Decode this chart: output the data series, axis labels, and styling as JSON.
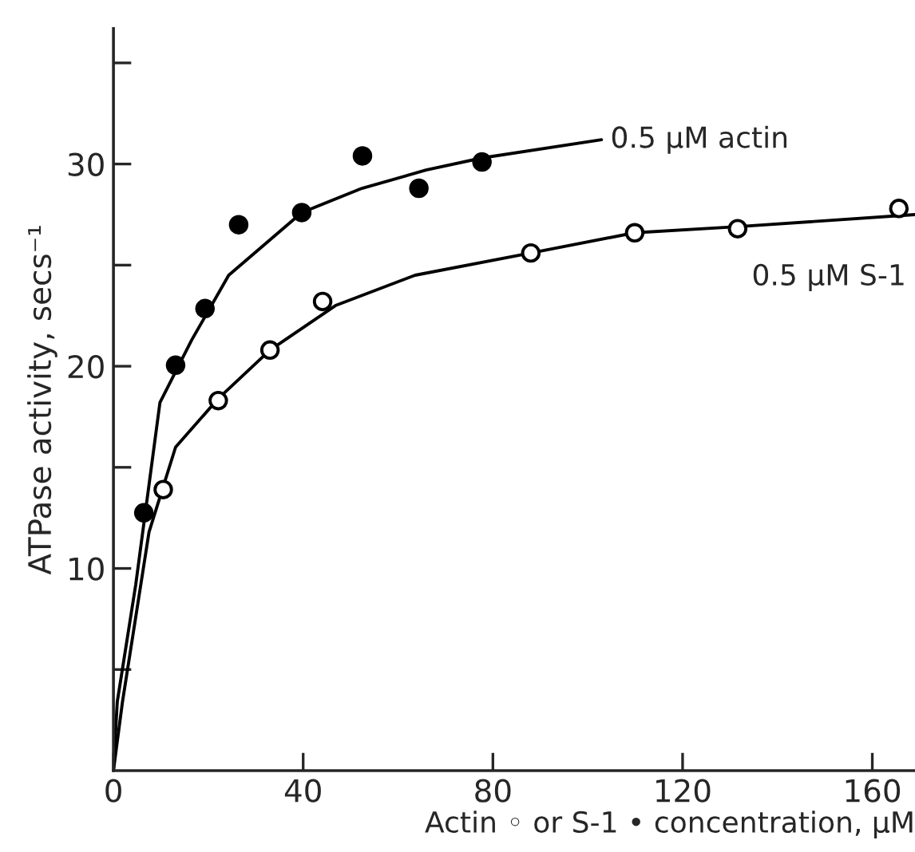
{
  "chart_data": {
    "type": "scatter",
    "xlabel": "Actin ◦ or S-1 • concentration, μM",
    "ylabel": "ATPase activity, secs⁻¹",
    "xlim": [
      0,
      169
    ],
    "ylim": [
      0,
      36.7
    ],
    "xticks": [
      0,
      40,
      80,
      120,
      160
    ],
    "yticks": [
      {
        "value": 5,
        "label": null
      },
      10,
      {
        "value": 15,
        "label": null
      },
      20,
      {
        "value": 25,
        "label": null
      },
      30,
      {
        "value": 35,
        "label": null
      }
    ],
    "grid": false,
    "legend": false,
    "series": [
      {
        "color": "#000000",
        "marker": "circle",
        "x": [
          6.4,
          13.1,
          19.3,
          26.4,
          39.7,
          52.5,
          64.4,
          77.7
        ],
        "values": [
          12.75,
          20.05,
          22.85,
          27.0,
          27.6,
          30.4,
          28.8,
          30.1
        ]
      },
      {
        "color": "#ffffff",
        "marker": "circle",
        "x": [
          10.5,
          22.1,
          33.0,
          44.1,
          88.0,
          109.9,
          131.6,
          165.6
        ],
        "values": [
          13.9,
          18.3,
          20.8,
          23.2,
          25.6,
          26.6,
          26.8,
          27.8
        ]
      },
      {
        "type": "line",
        "name": "0.5 μM actin",
        "color": "#000000",
        "marker": "none",
        "line_style": "solid",
        "x": [
          0,
          0.8,
          4.7,
          9.8,
          16.5,
          24.3,
          39.7,
          52.4,
          65.9,
          77.7,
          102.9
        ],
        "values": [
          0,
          3.4,
          9.2,
          18.2,
          21.3,
          24.5,
          27.6,
          28.8,
          29.7,
          30.3,
          31.2
        ]
      },
      {
        "type": "line",
        "name": "0.5 μM S-1",
        "color": "#000000",
        "marker": "none",
        "line_style": "solid",
        "x": [
          0,
          1.9,
          7.5,
          13.1,
          22.1,
          33.0,
          46.8,
          63.6,
          88.0,
          109.9,
          131.6,
          169
        ],
        "values": [
          0,
          3.4,
          11.8,
          16.0,
          18.4,
          20.8,
          23.0,
          24.5,
          25.6,
          26.6,
          26.9,
          27.5
        ]
      }
    ]
  }
}
